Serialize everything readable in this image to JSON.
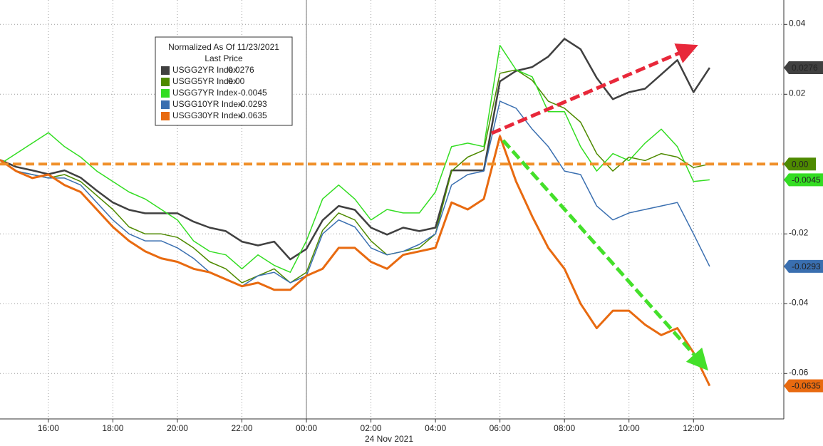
{
  "chart_data": {
    "type": "line",
    "legend_title": "Normalized As Of 11/23/2021",
    "legend_subtitle": "Last Price",
    "date_label": "24 Nov 2021",
    "x": [
      14.5,
      15,
      15.5,
      16,
      16.5,
      17,
      17.5,
      18,
      18.5,
      19,
      19.5,
      20,
      20.5,
      21,
      21.5,
      22,
      22.5,
      23,
      23.5,
      24,
      24.5,
      25,
      25.5,
      26,
      26.5,
      27,
      27.5,
      28,
      28.5,
      29,
      29.5,
      30,
      30.5,
      31,
      31.5,
      32,
      32.5,
      33,
      33.5,
      34,
      34.5,
      35,
      35.5,
      36,
      36.5
    ],
    "xlim": [
      14.5,
      38.8
    ],
    "xticks": [
      {
        "value": 16,
        "label": "16:00"
      },
      {
        "value": 18,
        "label": "18:00"
      },
      {
        "value": 20,
        "label": "20:00"
      },
      {
        "value": 22,
        "label": "22:00"
      },
      {
        "value": 24,
        "label": "00:00"
      },
      {
        "value": 26,
        "label": "02:00"
      },
      {
        "value": 28,
        "label": "04:00"
      },
      {
        "value": 30,
        "label": "06:00"
      },
      {
        "value": 32,
        "label": "08:00"
      },
      {
        "value": 34,
        "label": "10:00"
      },
      {
        "value": 36,
        "label": "12:00"
      }
    ],
    "ylim": [
      -0.073,
      0.047
    ],
    "yticks": [
      -0.06,
      -0.04,
      -0.02,
      0.02,
      0.04
    ],
    "grid": true,
    "hline": {
      "value": 0,
      "color": "#f0902a"
    },
    "day_divider": 24,
    "series": [
      {
        "name": "USGG2YR Index",
        "color": "#404040",
        "tag_text": "#ffffff",
        "last_price": {
          "value": 0.0276,
          "label": "0.0276"
        },
        "values": [
          0.0012,
          -0.0008,
          -0.0018,
          -0.0029,
          -0.0018,
          -0.0039,
          -0.0076,
          -0.011,
          -0.0131,
          -0.0141,
          -0.0141,
          -0.0141,
          -0.0165,
          -0.0182,
          -0.0192,
          -0.0222,
          -0.0233,
          -0.0222,
          -0.0273,
          -0.0243,
          -0.0161,
          -0.012,
          -0.0131,
          -0.0182,
          -0.0202,
          -0.0182,
          -0.0192,
          -0.0182,
          -0.0018,
          -0.0018,
          -0.0018,
          0.0237,
          0.0267,
          0.0278,
          0.0308,
          0.0359,
          0.0329,
          0.0247,
          0.0186,
          0.0206,
          0.0216,
          0.0257,
          0.0298,
          0.0206,
          0.0276
        ]
      },
      {
        "name": "USGG5YR Index",
        "color": "#4e8a00",
        "tag_text": "#000000",
        "last_price": {
          "value": 0,
          "label": "0.00"
        },
        "values": [
          0.0012,
          -0.002,
          -0.003,
          -0.004,
          -0.003,
          -0.005,
          -0.009,
          -0.013,
          -0.018,
          -0.02,
          -0.02,
          -0.021,
          -0.024,
          -0.028,
          -0.03,
          -0.034,
          -0.032,
          -0.03,
          -0.034,
          -0.031,
          -0.019,
          -0.014,
          -0.016,
          -0.022,
          -0.026,
          -0.025,
          -0.024,
          -0.02,
          -0.002,
          0.002,
          0.004,
          0.026,
          0.027,
          0.024,
          0.018,
          0.016,
          0.012,
          0.003,
          -0.002,
          0.002,
          0.001,
          0.003,
          0.002,
          -0.001,
          0
        ]
      },
      {
        "name": "USGG7YR Index",
        "color": "#33dd22",
        "tag_text": "#000000",
        "last_price": {
          "value": -0.0045,
          "label": "-0.0045"
        },
        "values": [
          0,
          0.003,
          0.006,
          0.009,
          0.005,
          0.002,
          -0.002,
          -0.005,
          -0.008,
          -0.01,
          -0.013,
          -0.016,
          -0.022,
          -0.025,
          -0.026,
          -0.03,
          -0.026,
          -0.029,
          -0.031,
          -0.022,
          -0.01,
          -0.006,
          -0.01,
          -0.016,
          -0.013,
          -0.014,
          -0.014,
          -0.008,
          0.005,
          0.006,
          0.005,
          0.034,
          0.027,
          0.025,
          0.015,
          0.015,
          0.005,
          -0.002,
          0.003,
          0.001,
          0.006,
          0.01,
          0.005,
          -0.005,
          -0.0045
        ]
      },
      {
        "name": "USGG10YR Index",
        "color": "#3a6fb0",
        "tag_text": "#ffffff",
        "last_price": {
          "value": -0.0293,
          "label": "-0.0293"
        },
        "values": [
          0.0012,
          -0.002,
          -0.003,
          -0.004,
          -0.004,
          -0.006,
          -0.011,
          -0.016,
          -0.02,
          -0.022,
          -0.022,
          -0.024,
          -0.027,
          -0.031,
          -0.033,
          -0.035,
          -0.032,
          -0.031,
          -0.034,
          -0.032,
          -0.02,
          -0.016,
          -0.018,
          -0.024,
          -0.026,
          -0.025,
          -0.023,
          -0.02,
          -0.006,
          -0.003,
          -0.002,
          0.018,
          0.016,
          0.01,
          0.005,
          -0.002,
          -0.003,
          -0.012,
          -0.016,
          -0.014,
          -0.013,
          -0.012,
          -0.011,
          -0.02,
          -0.0293
        ]
      },
      {
        "name": "USGG30YR Index",
        "color": "#e86a10",
        "tag_text": "#000000",
        "last_price": {
          "value": -0.0635,
          "label": "-0.0635"
        },
        "values": [
          0.0012,
          -0.002,
          -0.004,
          -0.003,
          -0.006,
          -0.008,
          -0.013,
          -0.018,
          -0.022,
          -0.025,
          -0.027,
          -0.028,
          -0.03,
          -0.031,
          -0.033,
          -0.035,
          -0.034,
          -0.036,
          -0.036,
          -0.032,
          -0.03,
          -0.024,
          -0.024,
          -0.028,
          -0.03,
          -0.026,
          -0.025,
          -0.024,
          -0.011,
          -0.013,
          -0.01,
          0.008,
          -0.005,
          -0.015,
          -0.024,
          -0.03,
          -0.04,
          -0.047,
          -0.042,
          -0.042,
          -0.046,
          -0.049,
          -0.047,
          -0.054,
          -0.0635
        ]
      }
    ]
  }
}
